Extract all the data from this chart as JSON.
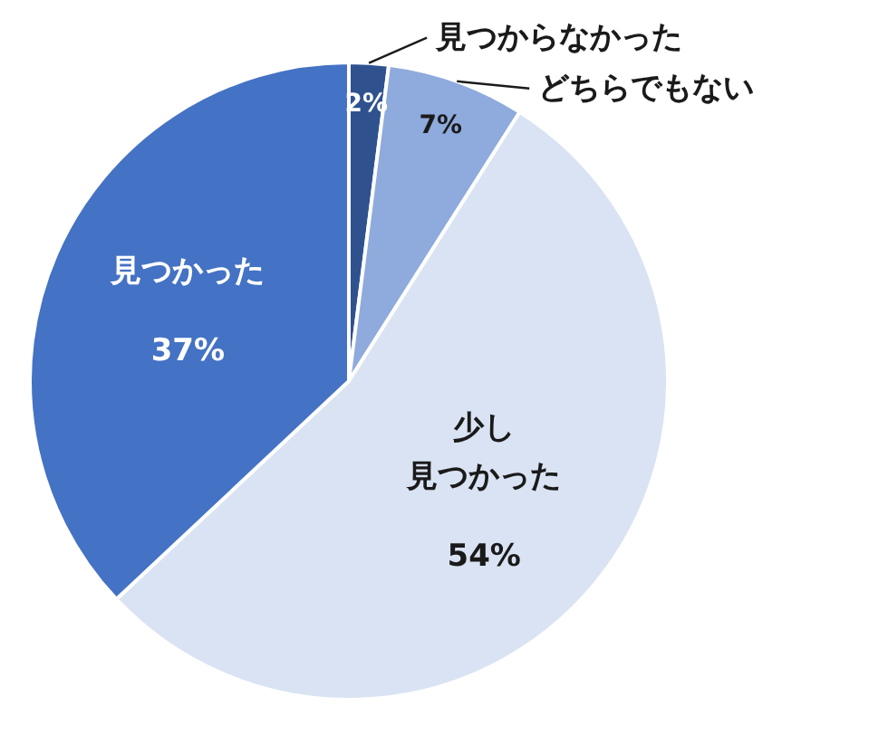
{
  "chart_data": {
    "type": "pie",
    "categories": [
      "見つからなかった",
      "どちらでもない",
      "少し見つかった",
      "見つかった"
    ],
    "values": [
      2,
      7,
      54,
      37
    ],
    "colors": [
      "#2f528f",
      "#8faadc",
      "#dae3f3",
      "#4472c4"
    ],
    "value_labels": [
      "2%",
      "7%",
      "54%",
      "37%"
    ]
  }
}
